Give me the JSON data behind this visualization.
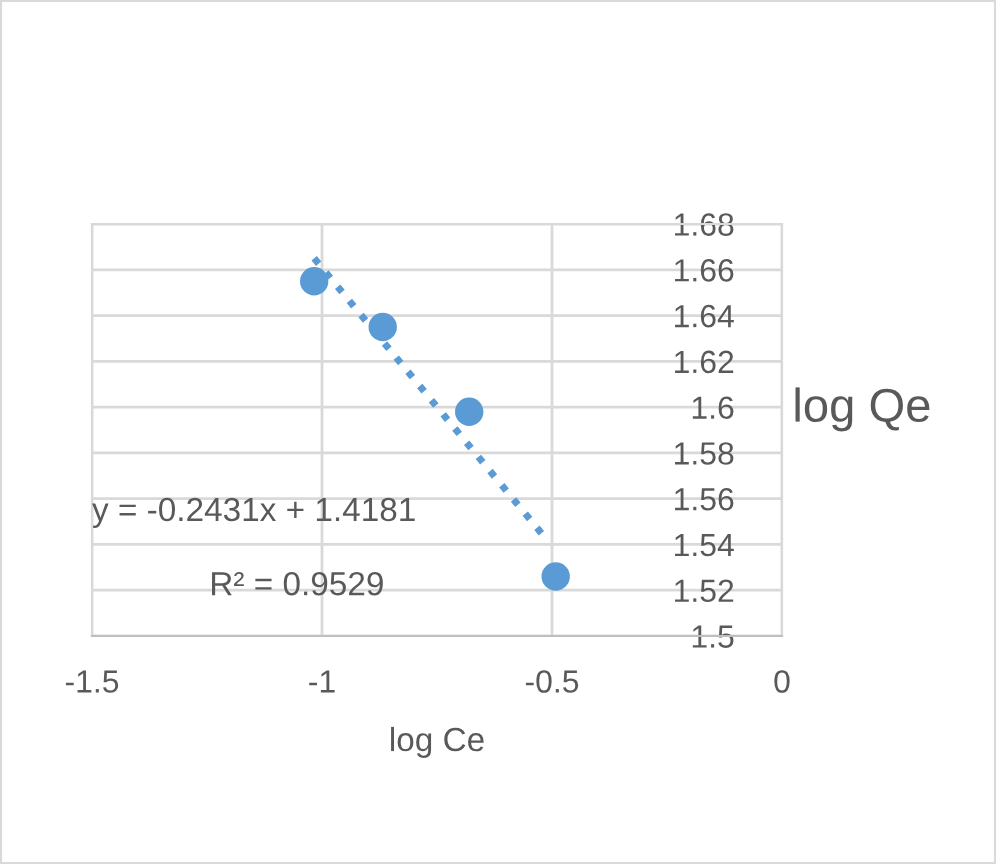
{
  "chart_data": {
    "type": "scatter",
    "xlabel": "log Ce",
    "ylabel": "log Qe",
    "series": [
      {
        "color": "#5b9bd5",
        "x": [
          -1.017,
          -0.868,
          -0.68,
          -0.492
        ],
        "values": [
          1.655,
          1.635,
          1.598,
          1.526
        ],
        "marker": "circle"
      },
      {
        "type": "line",
        "color": "#5b9bd5",
        "x": [
          -1.017,
          -0.511
        ],
        "values": [
          1.665,
          1.542
        ],
        "line_style": "dotted"
      }
    ],
    "annotations": [
      "y = -0.2431x + 1.4181",
      "R² = 0.9529"
    ],
    "xlim": [
      -1.5,
      0
    ],
    "xticks": [
      -1.5,
      -1,
      -0.5,
      0
    ],
    "ylim": [
      1.5,
      1.68
    ],
    "yticks": [
      1.5,
      1.52,
      1.54,
      1.56,
      1.58,
      1.6,
      1.62,
      1.64,
      1.66,
      1.68
    ],
    "grid": true,
    "legend": false
  }
}
